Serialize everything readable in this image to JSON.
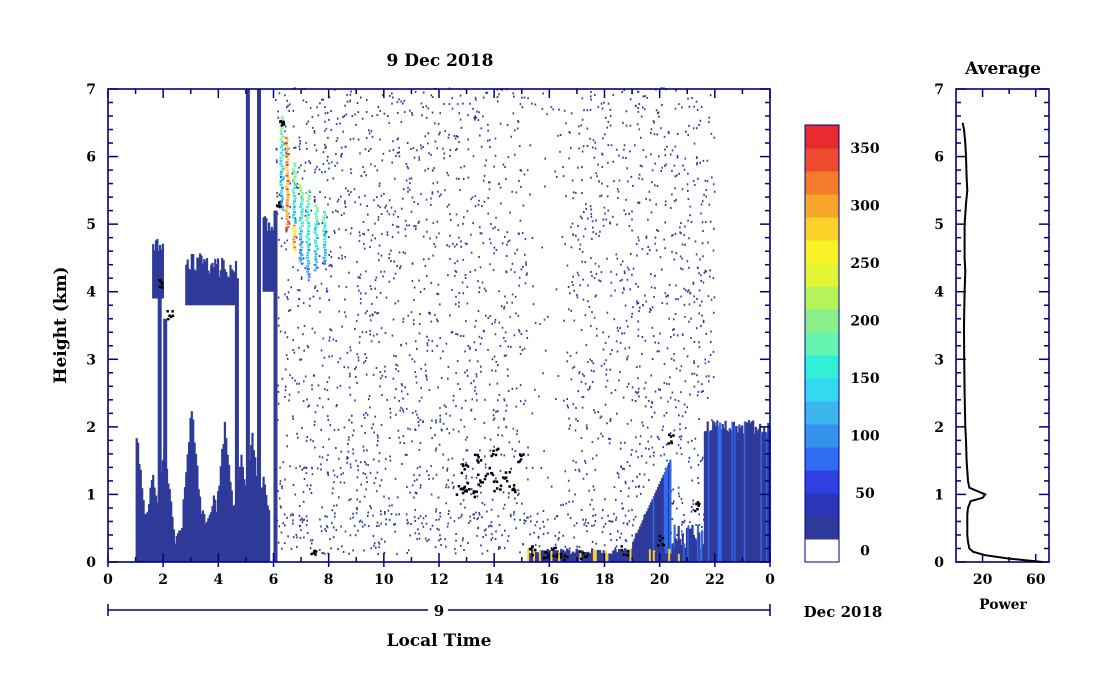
{
  "chart_data": [
    {
      "type": "heatmap",
      "title": "9 Dec 2018",
      "xlabel": "Local Time",
      "ylabel": "Height (km)",
      "date_axis": {
        "day_label": "9",
        "month_label": "Dec 2018"
      },
      "x_ticks": [
        "0",
        "2",
        "4",
        "6",
        "8",
        "10",
        "12",
        "14",
        "16",
        "18",
        "20",
        "22",
        "0"
      ],
      "x_range_hours": [
        0,
        24
      ],
      "y_ticks": [
        "0",
        "1",
        "2",
        "3",
        "4",
        "5",
        "6",
        "7"
      ],
      "ylim": [
        0,
        7
      ],
      "colorbar": {
        "tick_labels": [
          "0",
          "50",
          "100",
          "150",
          "200",
          "250",
          "300",
          "350"
        ],
        "range": [
          0,
          380
        ],
        "colors": [
          "#ffffff",
          "#2f3a99",
          "#2a36b8",
          "#2f3fe0",
          "#2f6cf0",
          "#3592ec",
          "#3cb4ee",
          "#33d9ee",
          "#32f0d8",
          "#67f3b0",
          "#8bf08a",
          "#b6f35a",
          "#e2f533",
          "#fbf226",
          "#fcd22a",
          "#f8a62b",
          "#f47b2c",
          "#ee4a2e",
          "#e82b2e"
        ]
      },
      "features": [
        {
          "name": "low clouds / precipitation",
          "x_start_h": 1.0,
          "x_end_h": 5.8,
          "top_km": 1.9
        },
        {
          "name": "mid-level layer",
          "x_start_h": 1.6,
          "x_end_h": 4.6,
          "base_km": 3.8,
          "top_km": 4.9
        },
        {
          "name": "strong echo",
          "x_start_h": 6.2,
          "x_end_h": 8.0,
          "base_km": 4.0,
          "top_km": 6.6,
          "peak_power": 370
        },
        {
          "name": "noise field",
          "x_start_h": 6.0,
          "x_end_h": 22.0,
          "base_km": 0.5,
          "top_km": 7.0
        },
        {
          "name": "evening low clouds",
          "x_start_h": 19.0,
          "x_end_h": 24.0,
          "top_km": 2.2
        }
      ]
    },
    {
      "type": "line",
      "title": "Average",
      "xlabel": "Power",
      "x_ticks": [
        "20",
        "60"
      ],
      "xlim": [
        0,
        70
      ],
      "y_ticks": [
        "0",
        "1",
        "2",
        "3",
        "4",
        "5",
        "6",
        "7"
      ],
      "ylim": [
        0,
        7
      ],
      "series": [
        {
          "y": [
            0.0,
            0.05,
            0.1,
            0.15,
            0.2,
            0.3,
            0.4,
            0.5,
            0.6,
            0.7,
            0.8,
            0.9,
            0.95,
            1.0,
            1.05,
            1.1,
            1.2,
            1.35,
            1.5,
            1.8,
            2.0,
            2.5,
            3.0,
            3.5,
            4.0,
            4.3,
            4.5,
            5.0,
            5.3,
            5.5,
            5.7,
            6.0,
            6.2,
            6.4,
            6.5
          ],
          "x": [
            65,
            40,
            22,
            13,
            10,
            9,
            8.5,
            8.5,
            8.5,
            8.5,
            9,
            11,
            20,
            22,
            16,
            10,
            9,
            8.5,
            8,
            7.5,
            7,
            6.5,
            6.2,
            6,
            6.5,
            7,
            6.5,
            6.5,
            7.5,
            8.5,
            8,
            7.5,
            7,
            6,
            5
          ]
        }
      ]
    }
  ]
}
